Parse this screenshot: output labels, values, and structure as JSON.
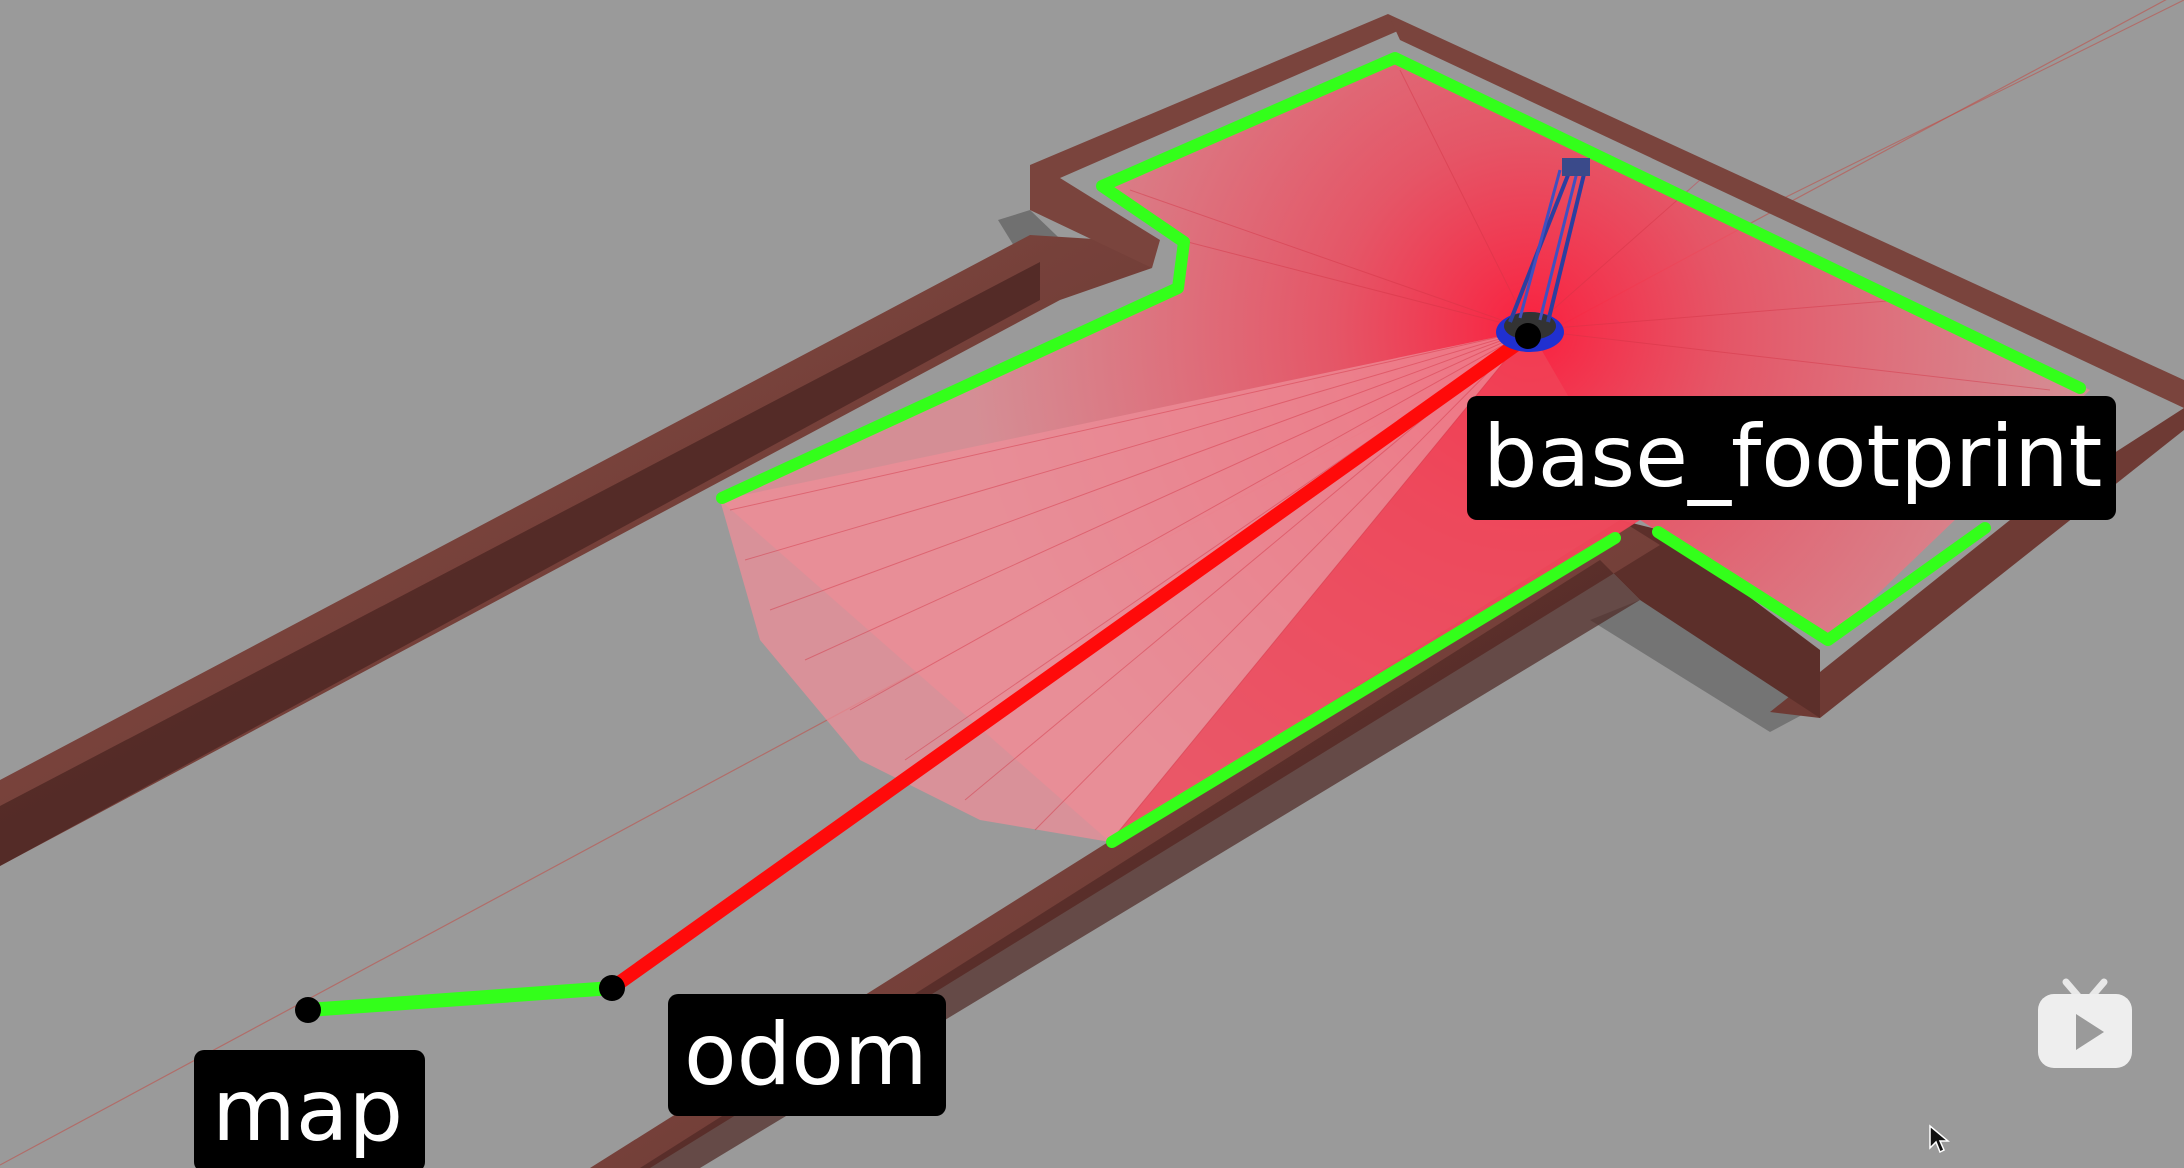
{
  "scene": {
    "background_color": "#9a9a9a",
    "laser_color": "#ff2a3a",
    "path_green_color": "#33ff1a",
    "path_red_color": "#ff0a0a",
    "wall_color": "#6b3a34"
  },
  "frames": {
    "map_label": "map",
    "odom_label": "odom",
    "base_label": "base_footprint"
  },
  "icons": {
    "video_logo": "tv-play-icon",
    "cursor": "mouse-cursor-icon"
  }
}
